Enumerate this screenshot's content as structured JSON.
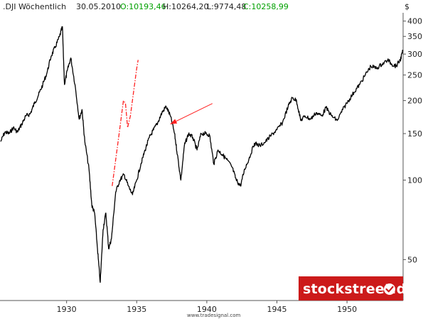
{
  "header": {
    "symbol": ".DJI Wöchentlich",
    "date": "30.05.2010",
    "open": "O:10193,46",
    "high": "H:10264,20",
    "low": "L:9774,48",
    "close": "C:10258,99",
    "currency": "$"
  },
  "colors": {
    "open": "#00a000",
    "close": "#00a000",
    "price_line": "#000000",
    "arrow": "#ff2020",
    "brand_bg": "#cc1a1a"
  },
  "brand": {
    "label": "stockstreet.de",
    "icon": "check-badge-icon"
  },
  "credit": "www.tradesignal.com",
  "chart_data": {
    "type": "line",
    "y_scale": "log",
    "x_ticks": [
      "1930",
      "1935",
      "1940",
      "1945",
      "1950"
    ],
    "y_ticks": [
      "50",
      "100",
      "150",
      "200",
      "250",
      "300",
      "350",
      "400"
    ],
    "ylim": [
      35,
      430
    ],
    "xlim": [
      1925.25,
      1954.0
    ],
    "grid": false,
    "series": [
      {
        "values": [
          {
            "x": 1925.3,
            "y": 140
          },
          {
            "x": 1925.6,
            "y": 152
          },
          {
            "x": 1925.9,
            "y": 150
          },
          {
            "x": 1926.2,
            "y": 158
          },
          {
            "x": 1926.5,
            "y": 152
          },
          {
            "x": 1926.8,
            "y": 163
          },
          {
            "x": 1927.1,
            "y": 175
          },
          {
            "x": 1927.4,
            "y": 178
          },
          {
            "x": 1927.7,
            "y": 195
          },
          {
            "x": 1928.0,
            "y": 210
          },
          {
            "x": 1928.3,
            "y": 230
          },
          {
            "x": 1928.6,
            "y": 255
          },
          {
            "x": 1928.9,
            "y": 295
          },
          {
            "x": 1929.2,
            "y": 320
          },
          {
            "x": 1929.5,
            "y": 350
          },
          {
            "x": 1929.7,
            "y": 381
          },
          {
            "x": 1929.85,
            "y": 230
          },
          {
            "x": 1930.05,
            "y": 260
          },
          {
            "x": 1930.3,
            "y": 290
          },
          {
            "x": 1930.6,
            "y": 230
          },
          {
            "x": 1930.9,
            "y": 170
          },
          {
            "x": 1931.1,
            "y": 185
          },
          {
            "x": 1931.3,
            "y": 140
          },
          {
            "x": 1931.6,
            "y": 110
          },
          {
            "x": 1931.8,
            "y": 80
          },
          {
            "x": 1932.0,
            "y": 75
          },
          {
            "x": 1932.2,
            "y": 55
          },
          {
            "x": 1932.4,
            "y": 41
          },
          {
            "x": 1932.6,
            "y": 65
          },
          {
            "x": 1932.8,
            "y": 75
          },
          {
            "x": 1933.0,
            "y": 55
          },
          {
            "x": 1933.2,
            "y": 60
          },
          {
            "x": 1933.5,
            "y": 90
          },
          {
            "x": 1933.8,
            "y": 100
          },
          {
            "x": 1934.1,
            "y": 105
          },
          {
            "x": 1934.4,
            "y": 95
          },
          {
            "x": 1934.7,
            "y": 88
          },
          {
            "x": 1935.0,
            "y": 100
          },
          {
            "x": 1935.3,
            "y": 115
          },
          {
            "x": 1935.6,
            "y": 130
          },
          {
            "x": 1935.9,
            "y": 145
          },
          {
            "x": 1936.2,
            "y": 155
          },
          {
            "x": 1936.5,
            "y": 165
          },
          {
            "x": 1936.8,
            "y": 180
          },
          {
            "x": 1937.1,
            "y": 190
          },
          {
            "x": 1937.4,
            "y": 175
          },
          {
            "x": 1937.7,
            "y": 150
          },
          {
            "x": 1937.9,
            "y": 125
          },
          {
            "x": 1938.15,
            "y": 100
          },
          {
            "x": 1938.4,
            "y": 135
          },
          {
            "x": 1938.7,
            "y": 150
          },
          {
            "x": 1939.0,
            "y": 145
          },
          {
            "x": 1939.3,
            "y": 130
          },
          {
            "x": 1939.6,
            "y": 150
          },
          {
            "x": 1939.9,
            "y": 150
          },
          {
            "x": 1940.2,
            "y": 148
          },
          {
            "x": 1940.5,
            "y": 115
          },
          {
            "x": 1940.8,
            "y": 130
          },
          {
            "x": 1941.1,
            "y": 125
          },
          {
            "x": 1941.4,
            "y": 120
          },
          {
            "x": 1941.8,
            "y": 112
          },
          {
            "x": 1942.1,
            "y": 100
          },
          {
            "x": 1942.4,
            "y": 95
          },
          {
            "x": 1942.7,
            "y": 110
          },
          {
            "x": 1943.0,
            "y": 120
          },
          {
            "x": 1943.4,
            "y": 138
          },
          {
            "x": 1943.8,
            "y": 135
          },
          {
            "x": 1944.2,
            "y": 140
          },
          {
            "x": 1944.6,
            "y": 148
          },
          {
            "x": 1945.0,
            "y": 155
          },
          {
            "x": 1945.4,
            "y": 165
          },
          {
            "x": 1945.8,
            "y": 190
          },
          {
            "x": 1946.1,
            "y": 205
          },
          {
            "x": 1946.4,
            "y": 200
          },
          {
            "x": 1946.7,
            "y": 168
          },
          {
            "x": 1947.0,
            "y": 175
          },
          {
            "x": 1947.4,
            "y": 170
          },
          {
            "x": 1947.8,
            "y": 180
          },
          {
            "x": 1948.2,
            "y": 175
          },
          {
            "x": 1948.5,
            "y": 188
          },
          {
            "x": 1948.9,
            "y": 175
          },
          {
            "x": 1949.3,
            "y": 168
          },
          {
            "x": 1949.7,
            "y": 185
          },
          {
            "x": 1950.1,
            "y": 200
          },
          {
            "x": 1950.5,
            "y": 215
          },
          {
            "x": 1950.9,
            "y": 230
          },
          {
            "x": 1951.3,
            "y": 250
          },
          {
            "x": 1951.7,
            "y": 270
          },
          {
            "x": 1952.1,
            "y": 265
          },
          {
            "x": 1952.5,
            "y": 275
          },
          {
            "x": 1952.9,
            "y": 285
          },
          {
            "x": 1953.2,
            "y": 275
          },
          {
            "x": 1953.5,
            "y": 270
          },
          {
            "x": 1953.8,
            "y": 285
          },
          {
            "x": 1954.0,
            "y": 310
          }
        ]
      }
    ],
    "annotations": {
      "dashed_projection": [
        {
          "x": 1933.25,
          "y": 95
        },
        {
          "x": 1933.75,
          "y": 150
        },
        {
          "x": 1934.05,
          "y": 200
        },
        {
          "x": 1934.2,
          "y": 195
        },
        {
          "x": 1934.35,
          "y": 158
        },
        {
          "x": 1934.55,
          "y": 175
        },
        {
          "x": 1935.0,
          "y": 265
        },
        {
          "x": 1935.1,
          "y": 285
        }
      ],
      "arrow": {
        "from": {
          "x": 1940.4,
          "y": 195
        },
        "to": {
          "x": 1937.4,
          "y": 163
        }
      }
    }
  }
}
